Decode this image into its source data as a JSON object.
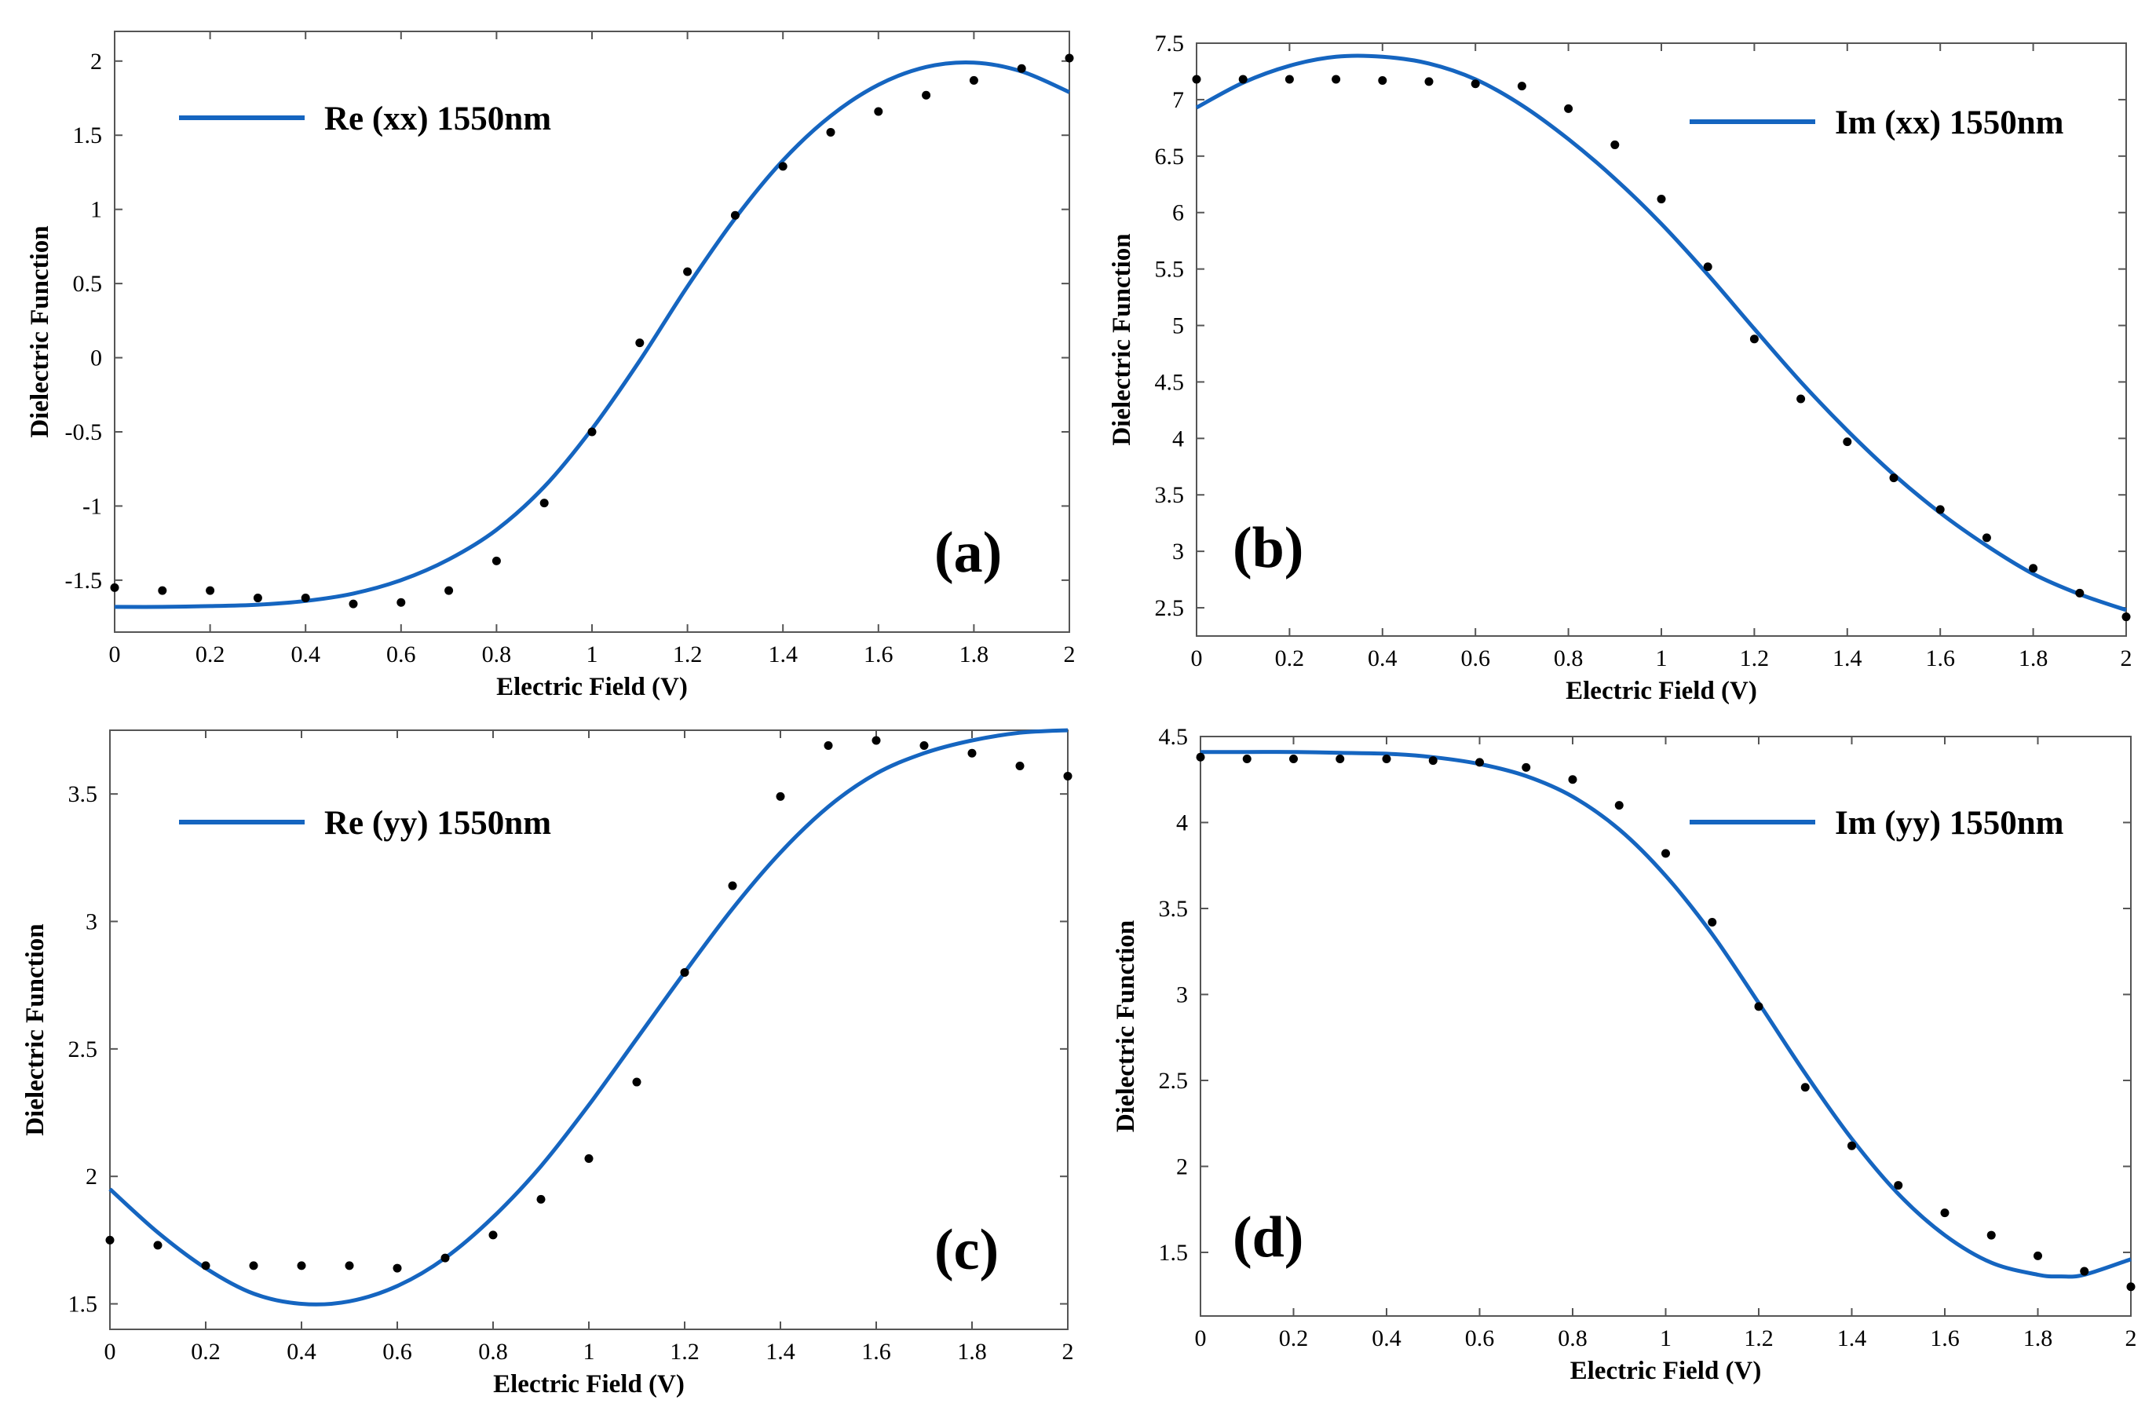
{
  "figure": {
    "background": "#ffffff",
    "line_color": "#1565c0",
    "marker_color": "#000000"
  },
  "chart_data": [
    {
      "id": "a",
      "type": "line",
      "panel_label": "(a)",
      "legend": "Re (xx) 1550nm",
      "legend_position": "top-left",
      "xlabel": "Electric Field (V)",
      "ylabel": "Dielectric Function",
      "xlim": [
        0,
        2
      ],
      "ylim": [
        -1.85,
        2.2
      ],
      "xticks": [
        0,
        0.2,
        0.4,
        0.6,
        0.8,
        1,
        1.2,
        1.4,
        1.6,
        1.8,
        2
      ],
      "xtick_labels": [
        "0",
        "0.2",
        "0.4",
        "0.6",
        "0.8",
        "1",
        "1.2",
        "1.4",
        "1.6",
        "1.8",
        "2"
      ],
      "yticks": [
        -1.5,
        -1,
        -0.5,
        0,
        0.5,
        1,
        1.5,
        2
      ],
      "ytick_labels": [
        "-1.5",
        "-1",
        "-0.5",
        "0",
        "0.5",
        "1",
        "1.5",
        "2"
      ],
      "fit_curve": {
        "name": "Re (xx) 1550nm",
        "x": [
          0,
          0.1,
          0.2,
          0.3,
          0.4,
          0.5,
          0.6,
          0.7,
          0.8,
          0.9,
          1.0,
          1.1,
          1.2,
          1.3,
          1.4,
          1.5,
          1.6,
          1.7,
          1.8,
          1.9,
          2.0
        ],
        "y": [
          -1.68,
          -1.68,
          -1.675,
          -1.665,
          -1.64,
          -1.59,
          -1.5,
          -1.36,
          -1.16,
          -0.87,
          -0.48,
          -0.02,
          0.48,
          0.94,
          1.33,
          1.63,
          1.84,
          1.96,
          1.99,
          1.93,
          1.79
        ]
      },
      "data_points": {
        "x": [
          0,
          0.1,
          0.2,
          0.3,
          0.4,
          0.5,
          0.6,
          0.7,
          0.8,
          0.9,
          1.0,
          1.1,
          1.2,
          1.3,
          1.4,
          1.5,
          1.6,
          1.7,
          1.8,
          1.9,
          2.0
        ],
        "y": [
          -1.55,
          -1.57,
          -1.57,
          -1.62,
          -1.62,
          -1.66,
          -1.65,
          -1.57,
          -1.37,
          -0.98,
          -0.5,
          0.1,
          0.58,
          0.96,
          1.29,
          1.52,
          1.66,
          1.77,
          1.87,
          1.95,
          2.02
        ]
      }
    },
    {
      "id": "b",
      "type": "line",
      "panel_label": "(b)",
      "legend": "Im (xx) 1550nm",
      "legend_position": "top-right",
      "xlabel": "Electric Field (V)",
      "ylabel": "Dielectric Function",
      "xlim": [
        0,
        2
      ],
      "ylim": [
        2.25,
        7.5
      ],
      "xticks": [
        0,
        0.2,
        0.4,
        0.6,
        0.8,
        1,
        1.2,
        1.4,
        1.6,
        1.8,
        2
      ],
      "xtick_labels": [
        "0",
        "0.2",
        "0.4",
        "0.6",
        "0.8",
        "1",
        "1.2",
        "1.4",
        "1.6",
        "1.8",
        "2"
      ],
      "yticks": [
        2.5,
        3,
        3.5,
        4,
        4.5,
        5,
        5.5,
        6,
        6.5,
        7,
        7.5
      ],
      "ytick_labels": [
        "2.5",
        "3",
        "3.5",
        "4",
        "4.5",
        "5",
        "5.5",
        "6",
        "6.5",
        "7",
        "7.5"
      ],
      "fit_curve": {
        "name": "Im (xx) 1550nm",
        "x": [
          0,
          0.1,
          0.2,
          0.3,
          0.4,
          0.5,
          0.6,
          0.7,
          0.8,
          0.9,
          1.0,
          1.1,
          1.2,
          1.3,
          1.4,
          1.5,
          1.6,
          1.7,
          1.8,
          1.9,
          2.0
        ],
        "y": [
          6.93,
          7.15,
          7.3,
          7.38,
          7.38,
          7.32,
          7.18,
          6.95,
          6.65,
          6.3,
          5.9,
          5.45,
          4.97,
          4.5,
          4.07,
          3.68,
          3.34,
          3.05,
          2.8,
          2.62,
          2.48
        ]
      },
      "data_points": {
        "x": [
          0,
          0.1,
          0.2,
          0.3,
          0.4,
          0.5,
          0.6,
          0.7,
          0.8,
          0.9,
          1.0,
          1.1,
          1.2,
          1.3,
          1.4,
          1.5,
          1.6,
          1.7,
          1.8,
          1.9,
          2.0
        ],
        "y": [
          7.18,
          7.18,
          7.18,
          7.18,
          7.17,
          7.16,
          7.14,
          7.12,
          6.92,
          6.6,
          6.12,
          5.52,
          4.88,
          4.35,
          3.97,
          3.65,
          3.37,
          3.12,
          2.85,
          2.63,
          2.42
        ]
      }
    },
    {
      "id": "c",
      "type": "line",
      "panel_label": "(c)",
      "legend": "Re (yy) 1550nm",
      "legend_position": "top-left",
      "xlabel": "Electric Field (V)",
      "ylabel": "Dielectric Function",
      "xlim": [
        0,
        2
      ],
      "ylim": [
        1.4,
        3.75
      ],
      "xticks": [
        0,
        0.2,
        0.4,
        0.6,
        0.8,
        1,
        1.2,
        1.4,
        1.6,
        1.8,
        2
      ],
      "xtick_labels": [
        "0",
        "0.2",
        "0.4",
        "0.6",
        "0.8",
        "1",
        "1.2",
        "1.4",
        "1.6",
        "1.8",
        "2"
      ],
      "yticks": [
        1.5,
        2,
        2.5,
        3,
        3.5
      ],
      "ytick_labels": [
        "1.5",
        "2",
        "2.5",
        "3",
        "3.5"
      ],
      "fit_curve": {
        "name": "Re (yy) 1550nm",
        "x": [
          0,
          0.1,
          0.2,
          0.3,
          0.4,
          0.5,
          0.6,
          0.7,
          0.8,
          0.9,
          1.0,
          1.1,
          1.2,
          1.3,
          1.4,
          1.5,
          1.6,
          1.7,
          1.8,
          1.9,
          2.0
        ],
        "y": [
          1.95,
          1.78,
          1.64,
          1.54,
          1.5,
          1.51,
          1.57,
          1.68,
          1.84,
          2.04,
          2.28,
          2.54,
          2.8,
          3.05,
          3.27,
          3.45,
          3.58,
          3.66,
          3.71,
          3.74,
          3.75
        ]
      },
      "data_points": {
        "x": [
          0,
          0.1,
          0.2,
          0.3,
          0.4,
          0.5,
          0.6,
          0.7,
          0.8,
          0.9,
          1.0,
          1.1,
          1.2,
          1.3,
          1.4,
          1.5,
          1.6,
          1.7,
          1.8,
          1.9,
          2.0
        ],
        "y": [
          1.75,
          1.73,
          1.65,
          1.65,
          1.65,
          1.65,
          1.64,
          1.68,
          1.77,
          1.91,
          2.07,
          2.37,
          2.8,
          3.14,
          3.49,
          3.69,
          3.71,
          3.69,
          3.66,
          3.61,
          3.57
        ]
      }
    },
    {
      "id": "d",
      "type": "line",
      "panel_label": "(d)",
      "legend": "Im (yy) 1550nm",
      "legend_position": "top-right",
      "xlabel": "Electric Field (V)",
      "ylabel": "Dielectric Function",
      "xlim": [
        0,
        2
      ],
      "ylim": [
        1.13,
        4.5
      ],
      "xticks": [
        0,
        0.2,
        0.4,
        0.6,
        0.8,
        1,
        1.2,
        1.4,
        1.6,
        1.8,
        2
      ],
      "xtick_labels": [
        "0",
        "0.2",
        "0.4",
        "0.6",
        "0.8",
        "1",
        "1.2",
        "1.4",
        "1.6",
        "1.8",
        "2"
      ],
      "yticks": [
        1.5,
        2,
        2.5,
        3,
        3.5,
        4,
        4.5
      ],
      "ytick_labels": [
        "1.5",
        "2",
        "2.5",
        "3",
        "3.5",
        "4",
        "4.5"
      ],
      "fit_curve": {
        "name": "Im (yy) 1550nm",
        "x": [
          0,
          0.1,
          0.2,
          0.3,
          0.4,
          0.5,
          0.6,
          0.7,
          0.8,
          0.9,
          1.0,
          1.1,
          1.2,
          1.3,
          1.4,
          1.5,
          1.6,
          1.7,
          1.8,
          1.85,
          1.9,
          2.0
        ],
        "y": [
          4.41,
          4.41,
          4.41,
          4.405,
          4.4,
          4.38,
          4.34,
          4.27,
          4.15,
          3.96,
          3.69,
          3.35,
          2.95,
          2.54,
          2.16,
          1.84,
          1.6,
          1.44,
          1.37,
          1.36,
          1.37,
          1.46
        ]
      },
      "data_points": {
        "x": [
          0,
          0.1,
          0.2,
          0.3,
          0.4,
          0.5,
          0.6,
          0.7,
          0.8,
          0.9,
          1.0,
          1.1,
          1.2,
          1.3,
          1.4,
          1.5,
          1.6,
          1.7,
          1.8,
          1.9,
          2.0
        ],
        "y": [
          4.38,
          4.37,
          4.37,
          4.37,
          4.37,
          4.36,
          4.35,
          4.32,
          4.25,
          4.1,
          3.82,
          3.42,
          2.93,
          2.46,
          2.12,
          1.89,
          1.73,
          1.6,
          1.48,
          1.39,
          1.3
        ]
      }
    }
  ]
}
